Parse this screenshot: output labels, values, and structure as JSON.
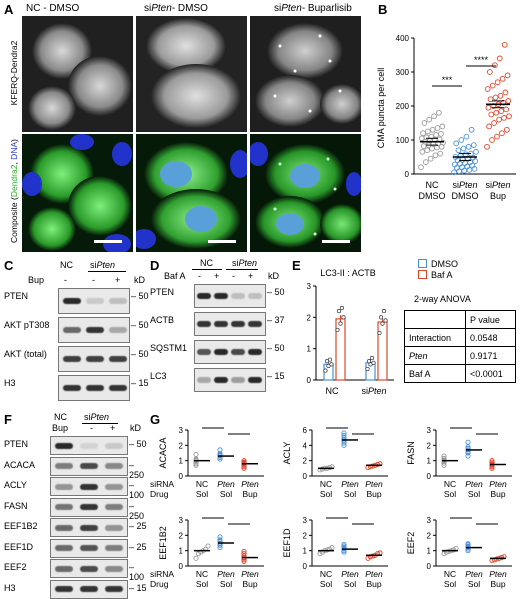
{
  "panels": {
    "a": "A",
    "b": "B",
    "c": "C",
    "d": "D",
    "e": "E",
    "f": "F",
    "g": "G"
  },
  "micro": {
    "cols": [
      {
        "pre": "NC - DMSO",
        "it": "",
        "post": ""
      },
      {
        "pre": "si",
        "it": "Pten",
        "post": "- DMSO"
      },
      {
        "pre": "si",
        "it": "Pten",
        "post": "- Buparlisib"
      }
    ],
    "row1_label": "KFERQ-Dendra2",
    "row2_pre": "Composite (",
    "row2_green": "Dendra2",
    "row2_mid": ", ",
    "row2_blue": "DNA",
    "row2_post": ")"
  },
  "panel_b": {
    "ylabel": "CMA puncta per cell",
    "yticks": [
      "0",
      "100",
      "200",
      "300",
      "400"
    ],
    "groups": [
      {
        "l1": "NC",
        "l2": "DMSO",
        "it": false
      },
      {
        "l1": "siPten",
        "l2": "DMSO",
        "it": true
      },
      {
        "l1": "siPten",
        "l2": "Bup",
        "it": true
      }
    ],
    "sig": [
      "***",
      "****"
    ]
  },
  "panel_c": {
    "header_nc": "NC",
    "header_si": "siPten",
    "bup": "Bup",
    "signs": [
      "-",
      "-",
      "+"
    ],
    "kd": "kD",
    "rows": [
      {
        "name": "PTEN",
        "kd": "50"
      },
      {
        "name": "AKT pT308",
        "kd": "50"
      },
      {
        "name": "AKT (total)",
        "kd": "50"
      },
      {
        "name": "H3",
        "kd": "15"
      }
    ]
  },
  "panel_d": {
    "header_nc": "NC",
    "header_si": "siPten",
    "bafa": "Baf A",
    "signs": [
      "-",
      "+",
      "-",
      "+"
    ],
    "kd": "kD",
    "rows": [
      {
        "name": "PTEN",
        "kd": "50"
      },
      {
        "name": "ACTB",
        "kd": "37"
      },
      {
        "name": "SQSTM1",
        "kd": "50"
      },
      {
        "name": "LC3",
        "kd": "15"
      }
    ]
  },
  "panel_e": {
    "title": "LC3-II : ACTB",
    "yticks": [
      "0",
      "1",
      "2",
      "3"
    ],
    "xlabels": [
      "NC",
      "siPten"
    ],
    "legend": [
      "DMSO",
      "Baf A"
    ],
    "colors": {
      "dmso": "#4a90d9",
      "bafa": "#e0452b"
    },
    "anova_title": "2-way ANOVA",
    "anova_header": "P value",
    "anova_rows": [
      {
        "name": "Interaction",
        "p": "0.0548"
      },
      {
        "name": "Pten",
        "p": "0.9171"
      },
      {
        "name": "Baf A",
        "p": "<0.0001"
      }
    ]
  },
  "panel_f": {
    "header_nc": "NC",
    "header_si": "siPten",
    "bup": "Bup",
    "signs": [
      "-",
      "-",
      "+"
    ],
    "kd": "kD",
    "rows": [
      {
        "name": "PTEN",
        "kd": "50"
      },
      {
        "name": "ACACA",
        "kd": "250"
      },
      {
        "name": "ACLY",
        "kd": "100"
      },
      {
        "name": "FASN",
        "kd": "250"
      },
      {
        "name": "EEF1B2",
        "kd": "25"
      },
      {
        "name": "EEF1D",
        "kd": "25"
      },
      {
        "name": "EEF2",
        "kd": "100"
      },
      {
        "name": "H3",
        "kd": "15"
      }
    ]
  },
  "panel_g": {
    "row_labels": [
      "siRNA",
      "Drug"
    ],
    "xlabels": [
      [
        "NC",
        "Sol"
      ],
      [
        "Pten",
        "Sol"
      ],
      [
        "Pten",
        "Bup"
      ]
    ],
    "yticks": [
      "0",
      "1",
      "2",
      "3"
    ],
    "plots": [
      {
        "name": "ACACA",
        "sig1": "*",
        "sig2": "***"
      },
      {
        "name": "ACLY",
        "sig1": "****",
        "sig2": "****"
      },
      {
        "name": "FASN",
        "sig1": "**",
        "sig2": "***"
      },
      {
        "name": "EEF1B2",
        "sig1": "**",
        "sig2": "****"
      },
      {
        "name": "EEF1D",
        "sig1": "p = 0.19",
        "sig2": "***"
      },
      {
        "name": "EEF2",
        "sig1": "p = 0.07",
        "sig2": "***"
      }
    ]
  },
  "chart_data": [
    {
      "type": "scatter",
      "panel": "B",
      "ylabel": "CMA puncta per cell",
      "ylim": [
        0,
        400
      ],
      "categories": [
        "NC DMSO",
        "siPten DMSO",
        "siPten Bup"
      ],
      "means": [
        95,
        50,
        205
      ],
      "series": [
        {
          "name": "NC DMSO",
          "values": [
            20,
            35,
            45,
            55,
            60,
            65,
            70,
            75,
            78,
            80,
            82,
            85,
            88,
            90,
            92,
            95,
            98,
            100,
            102,
            105,
            108,
            110,
            115,
            118,
            120,
            125,
            130,
            135,
            140,
            150,
            160,
            170,
            180
          ]
        },
        {
          "name": "siPten DMSO",
          "values": [
            5,
            8,
            10,
            12,
            15,
            18,
            20,
            22,
            25,
            28,
            30,
            32,
            35,
            38,
            40,
            42,
            45,
            48,
            50,
            55,
            58,
            60,
            65,
            70,
            75,
            80,
            85,
            90,
            100,
            110,
            130
          ]
        },
        {
          "name": "siPten Bup",
          "values": [
            80,
            100,
            110,
            120,
            130,
            140,
            150,
            160,
            165,
            170,
            175,
            180,
            185,
            190,
            195,
            200,
            205,
            210,
            215,
            220,
            225,
            230,
            240,
            250,
            260,
            270,
            280,
            290,
            300,
            320,
            340,
            380
          ]
        }
      ]
    },
    {
      "type": "bar",
      "panel": "E",
      "title": "LC3-II : ACTB",
      "categories": [
        "NC",
        "siPten"
      ],
      "ylim": [
        0,
        3
      ],
      "series": [
        {
          "name": "DMSO",
          "values": [
            0.5,
            0.55
          ],
          "points": [
            [
              0.3,
              0.45,
              0.5,
              0.6,
              0.65
            ],
            [
              0.35,
              0.5,
              0.55,
              0.6,
              0.7
            ]
          ]
        },
        {
          "name": "Baf A",
          "values": [
            1.95,
            1.85
          ],
          "points": [
            [
              1.6,
              1.8,
              2.0,
              2.2,
              2.3
            ],
            [
              1.5,
              1.8,
              1.9,
              2.0,
              2.2
            ]
          ]
        }
      ]
    },
    {
      "type": "scatter",
      "panel": "G",
      "categories": [
        "NC Sol",
        "Pten Sol",
        "Pten Bup"
      ],
      "ylim": [
        0,
        3
      ],
      "plots": [
        {
          "name": "ACACA",
          "means": [
            1.0,
            1.3,
            0.8
          ],
          "points": [
            [
              0.7,
              0.8,
              0.9,
              1.0,
              1.05,
              1.1,
              1.4
            ],
            [
              1.1,
              1.2,
              1.3,
              1.35,
              1.4,
              1.45,
              1.7
            ],
            [
              0.5,
              0.6,
              0.7,
              0.8,
              0.85,
              0.9,
              1.0
            ]
          ]
        },
        {
          "name": "ACLY",
          "means": [
            1.0,
            4.7,
            1.4
          ],
          "points": [
            [
              0.8,
              0.9,
              1.0,
              1.0,
              1.1,
              1.2
            ],
            [
              4.0,
              4.3,
              4.6,
              4.8,
              5.0,
              5.3,
              5.6
            ],
            [
              1.1,
              1.2,
              1.3,
              1.4,
              1.5,
              1.6
            ]
          ]
        },
        {
          "name": "FASN",
          "means": [
            1.0,
            1.7,
            0.75
          ],
          "points": [
            [
              0.7,
              0.85,
              0.95,
              1.0,
              1.05,
              1.15,
              1.3
            ],
            [
              1.3,
              1.5,
              1.6,
              1.7,
              1.8,
              1.9,
              2.2
            ],
            [
              0.5,
              0.6,
              0.7,
              0.75,
              0.8,
              0.9,
              1.0
            ]
          ]
        },
        {
          "name": "EEF1B2",
          "means": [
            1.0,
            1.5,
            0.55
          ],
          "points": [
            [
              0.5,
              0.8,
              0.9,
              1.0,
              1.1,
              1.3
            ],
            [
              1.2,
              1.35,
              1.45,
              1.5,
              1.6,
              1.7,
              1.9
            ],
            [
              0.3,
              0.4,
              0.5,
              0.55,
              0.65,
              0.8,
              0.95
            ]
          ]
        },
        {
          "name": "EEF1D",
          "means": [
            1.0,
            1.1,
            0.7
          ],
          "points": [
            [
              0.8,
              0.9,
              1.0,
              1.05,
              1.1,
              1.2
            ],
            [
              0.9,
              1.0,
              1.1,
              1.15,
              1.2,
              1.3,
              1.4
            ],
            [
              0.5,
              0.6,
              0.65,
              0.7,
              0.8,
              0.85
            ]
          ]
        },
        {
          "name": "EEF2",
          "means": [
            1.0,
            1.2,
            0.5
          ],
          "points": [
            [
              0.8,
              0.9,
              0.95,
              1.0,
              1.05,
              1.15
            ],
            [
              1.0,
              1.1,
              1.2,
              1.25,
              1.3,
              1.4,
              1.45
            ],
            [
              0.35,
              0.4,
              0.45,
              0.5,
              0.55,
              0.6
            ]
          ]
        }
      ]
    }
  ]
}
